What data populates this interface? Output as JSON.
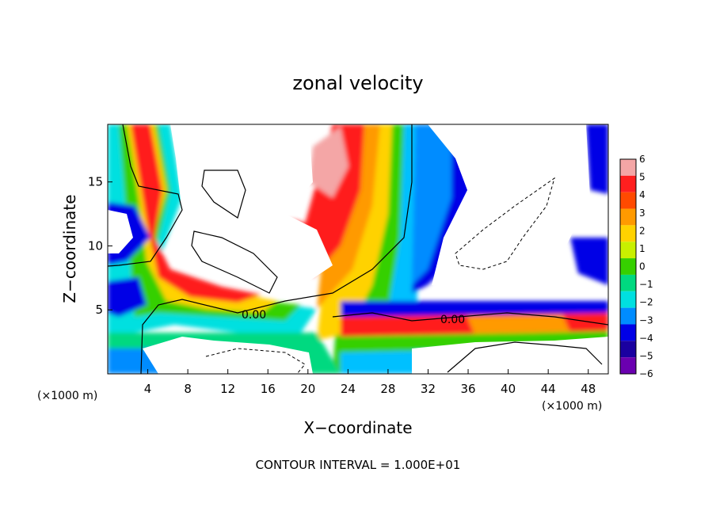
{
  "chart_data": {
    "type": "heatmap",
    "title": "zonal velocity",
    "xlabel": "X−coordinate",
    "ylabel": "Z−coordinate",
    "x_unit_left": "(×1000 m)",
    "x_unit_right": "(×1000 m)",
    "xlim": [
      0,
      50
    ],
    "ylim": [
      0,
      19.5
    ],
    "x_ticks": [
      4,
      8,
      12,
      16,
      20,
      24,
      28,
      32,
      36,
      40,
      44,
      48
    ],
    "y_ticks": [
      5,
      10,
      15
    ],
    "colorbar": {
      "levels": [
        6,
        5,
        4,
        3,
        2,
        1,
        0,
        -1,
        -2,
        -3,
        -4,
        -5,
        -6
      ],
      "tick_labels": [
        "6",
        "5",
        "4",
        "3",
        "2",
        "1",
        "0",
        "−1",
        "−2",
        "−3",
        "−4",
        "−5",
        "−6"
      ],
      "colors": [
        "#f4a6a6",
        "#ff1f1f",
        "#ff4a00",
        "#ff9a00",
        "#ffd200",
        "#c8f000",
        "#36d000",
        "#00d980",
        "#00e0e0",
        "#008cff",
        "#0000e6",
        "#1a00a0",
        "#6a00b0"
      ]
    },
    "contour_labels": [
      {
        "text": "0.00",
        "x": 14.5,
        "z": 4.7
      },
      {
        "text": "0.00",
        "x": 35,
        "z": 4.4
      }
    ],
    "footer": "CONTOUR INTERVAL = 1.000E+01"
  }
}
